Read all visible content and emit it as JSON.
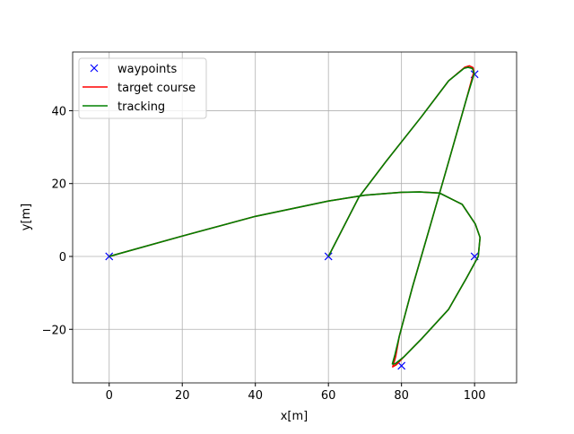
{
  "chart_data": {
    "type": "line",
    "xlabel": "x[m]",
    "ylabel": "y[m]",
    "xlim": [
      -10,
      111.5
    ],
    "ylim": [
      -34.7,
      56.1
    ],
    "xticks": [
      0,
      20,
      40,
      60,
      80,
      100
    ],
    "yticks": [
      {
        "value": -20,
        "label": "−20"
      },
      0,
      20,
      40
    ],
    "grid": true,
    "legend": "upper left",
    "series": [
      {
        "name": "waypoints",
        "color": "#0000ff",
        "style": "marker",
        "x": [
          0,
          100,
          80,
          100,
          60
        ],
        "y": [
          0,
          0,
          -30,
          50,
          0
        ]
      },
      {
        "name": "target course",
        "color": "#ff0000",
        "style": "line",
        "x": [
          0,
          20,
          40,
          60,
          70,
          80,
          85,
          90.4,
          96.6,
          100.2,
          101.5,
          101,
          97.8,
          92.9,
          85.5,
          80.6,
          78.6,
          77.6,
          78.4,
          79.4,
          83,
          88,
          92.9,
          97.8,
          99.8,
          99.6,
          98.6,
          97.3,
          92.9,
          85.5,
          75.7,
          68.3,
          60
        ],
        "y": [
          0,
          5.6,
          11,
          15.2,
          16.8,
          17.6,
          17.7,
          17.4,
          14.3,
          8.9,
          5.2,
          0,
          -5.9,
          -14.5,
          -22.6,
          -27.6,
          -29.7,
          -30.3,
          -27.5,
          -21.9,
          -8.4,
          8.9,
          26,
          43.3,
          50.7,
          51.8,
          52.3,
          51.9,
          48.2,
          38.4,
          26,
          16.2,
          0
        ]
      },
      {
        "name": "tracking",
        "color": "#008000",
        "style": "line",
        "x": [
          0,
          20,
          40,
          60,
          70,
          80,
          85,
          90.4,
          96.6,
          100.2,
          101.5,
          101,
          97.8,
          92.9,
          85.5,
          80.6,
          78.2,
          77.5,
          78.2,
          79.4,
          83,
          88,
          92.9,
          97.8,
          99.9,
          99.4,
          98.2,
          97.1,
          92.9,
          85.5,
          75.7,
          68.3,
          60
        ],
        "y": [
          0,
          5.6,
          11,
          15.2,
          16.8,
          17.6,
          17.7,
          17.4,
          14.3,
          8.9,
          5.2,
          0,
          -5.9,
          -14.5,
          -22.6,
          -27.6,
          -29.5,
          -29.5,
          -27,
          -21.9,
          -8.4,
          8.9,
          26,
          43.3,
          50.2,
          51.6,
          51.9,
          51.6,
          48.2,
          38.4,
          26,
          16.2,
          0
        ]
      }
    ]
  }
}
